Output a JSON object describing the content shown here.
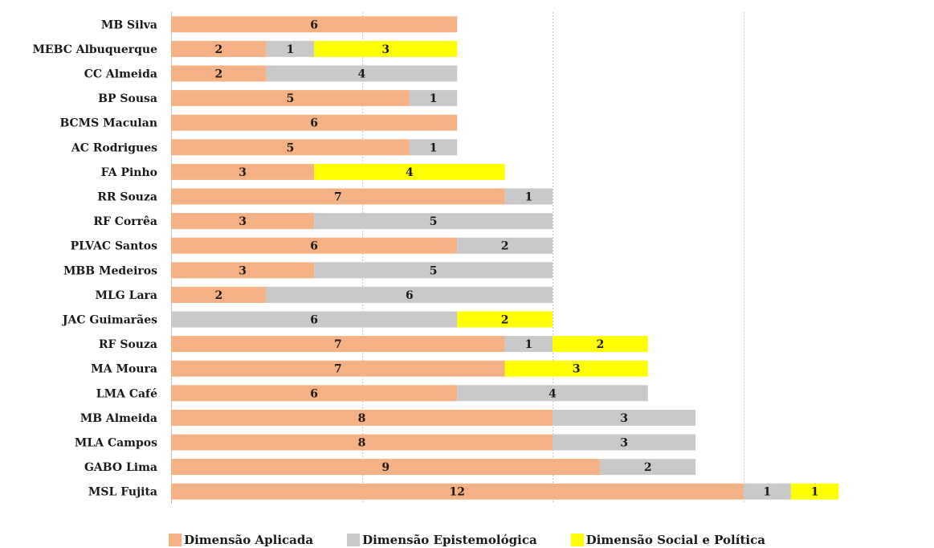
{
  "chart_data": {
    "type": "bar",
    "orientation": "horizontal",
    "stacked": true,
    "title": "",
    "xlabel": "",
    "ylabel": "",
    "xlim": [
      0,
      16
    ],
    "grid": true,
    "legend_position": "bottom",
    "categories": [
      "MB Silva",
      "MEBC Albuquerque",
      "CC Almeida",
      "BP Sousa",
      "BCMS Maculan",
      "AC Rodrigues",
      "FA Pinho",
      "RR Souza",
      "RF Corrêa",
      "PLVAC Santos",
      "MBB Medeiros",
      "MLG Lara",
      "JAC Guimarães",
      "RF Souza",
      "MA Moura",
      "LMA Café",
      "MB Almeida",
      "MLA Campos",
      "GABO Lima",
      "MSL Fujita"
    ],
    "series": [
      {
        "name": "Dimensão Aplicada",
        "color": "#F4B183",
        "values": [
          6,
          2,
          2,
          5,
          6,
          5,
          3,
          7,
          3,
          6,
          3,
          2,
          0,
          7,
          7,
          6,
          8,
          8,
          9,
          12
        ]
      },
      {
        "name": "Dimensão Epistemológica",
        "color": "#C9C9C9",
        "values": [
          0,
          1,
          4,
          1,
          0,
          1,
          0,
          1,
          5,
          2,
          5,
          6,
          6,
          1,
          0,
          4,
          3,
          3,
          2,
          1
        ]
      },
      {
        "name": "Dimensão Social e Política",
        "color": "#FFFF00",
        "values": [
          0,
          3,
          0,
          0,
          0,
          0,
          4,
          0,
          0,
          0,
          0,
          0,
          2,
          2,
          3,
          0,
          0,
          0,
          0,
          1
        ]
      }
    ]
  }
}
